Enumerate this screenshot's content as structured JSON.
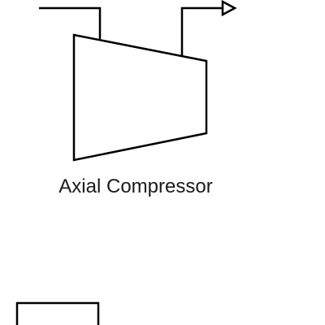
{
  "diagram": {
    "compressor_label": "Axial Compressor",
    "compressor_icon": "axial-compressor-icon",
    "stroke_color": "#000000",
    "background_color": "#ffffff"
  }
}
